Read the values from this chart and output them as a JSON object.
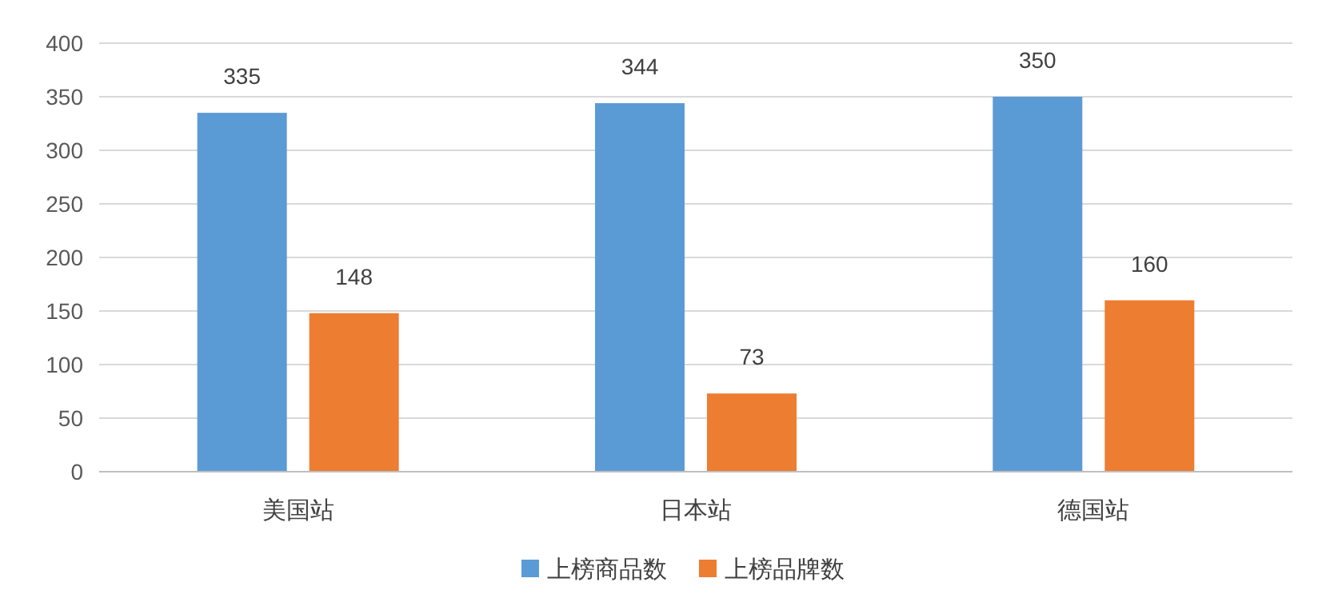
{
  "chart_data": {
    "type": "bar",
    "categories": [
      "美国站",
      "日本站",
      "德国站"
    ],
    "series": [
      {
        "name": "上榜商品数",
        "color": "#5b9bd5",
        "values": [
          335,
          344,
          350
        ]
      },
      {
        "name": "上榜品牌数",
        "color": "#ed7d31",
        "values": [
          148,
          73,
          160
        ]
      }
    ],
    "ylim": [
      0,
      400
    ],
    "yticks": [
      0,
      50,
      100,
      150,
      200,
      250,
      300,
      350,
      400
    ],
    "grid": "y",
    "legend": "bottom",
    "data_labels": true
  }
}
